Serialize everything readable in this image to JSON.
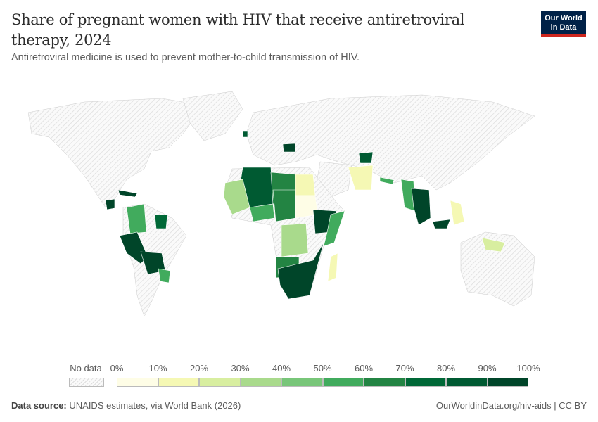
{
  "header": {
    "title": "Share of pregnant women with HIV that receive antiretroviral therapy, 2024",
    "subtitle": "Antiretroviral medicine is used to prevent mother-to-child transmission of HIV.",
    "logo": "Our World in Data"
  },
  "legend": {
    "no_data_label": "No data",
    "ticks": [
      "0%",
      "10%",
      "20%",
      "30%",
      "40%",
      "50%",
      "60%",
      "70%",
      "80%",
      "90%",
      "100%"
    ],
    "colors": [
      "#fefde6",
      "#f5f8b4",
      "#d8eea0",
      "#a9da8c",
      "#78c679",
      "#41ab5d",
      "#238443",
      "#006837",
      "#005a32",
      "#004529"
    ],
    "no_data_color": "#e5e5e5"
  },
  "chart_data": {
    "type": "choropleth",
    "title": "Share of pregnant women with HIV that receive antiretroviral therapy, 2024",
    "unit": "%",
    "range": [
      0,
      100
    ],
    "regions": [
      {
        "name": "Algeria",
        "value": 85
      },
      {
        "name": "Libya",
        "value": 65
      },
      {
        "name": "Egypt",
        "value": 18
      },
      {
        "name": "Sudan",
        "value": 5
      },
      {
        "name": "Mali",
        "value": 35
      },
      {
        "name": "Niger",
        "value": 55
      },
      {
        "name": "Chad",
        "value": 65
      },
      {
        "name": "Ethiopia",
        "value": 90
      },
      {
        "name": "Somalia",
        "value": 55
      },
      {
        "name": "DR Congo",
        "value": 35
      },
      {
        "name": "Angola",
        "value": 65
      },
      {
        "name": "Southern Africa",
        "value": 95
      },
      {
        "name": "Madagascar",
        "value": 18
      },
      {
        "name": "Colombia",
        "value": 55
      },
      {
        "name": "Guyana",
        "value": 75
      },
      {
        "name": "Peru",
        "value": 95
      },
      {
        "name": "Bolivia",
        "value": 100
      },
      {
        "name": "Paraguay",
        "value": 55
      },
      {
        "name": "Guatemala",
        "value": 95
      },
      {
        "name": "Cuba",
        "value": 95
      },
      {
        "name": "Afghanistan/Pakistan",
        "value": 12
      },
      {
        "name": "Myanmar",
        "value": 55
      },
      {
        "name": "Thailand/Cambodia",
        "value": 95
      },
      {
        "name": "Malaysia",
        "value": 95
      },
      {
        "name": "Philippines",
        "value": 18
      },
      {
        "name": "Papua New Guinea",
        "value": 20
      },
      {
        "name": "Nepal",
        "value": 55
      },
      {
        "name": "Tajikistan",
        "value": 80
      },
      {
        "name": "Romania",
        "value": 95
      },
      {
        "name": "Ireland",
        "value": 85
      }
    ]
  },
  "footer": {
    "source_label": "Data source:",
    "source": "UNAIDS estimates, via World Bank (2026)",
    "link": "OurWorldinData.org/hiv-aids | CC BY"
  }
}
